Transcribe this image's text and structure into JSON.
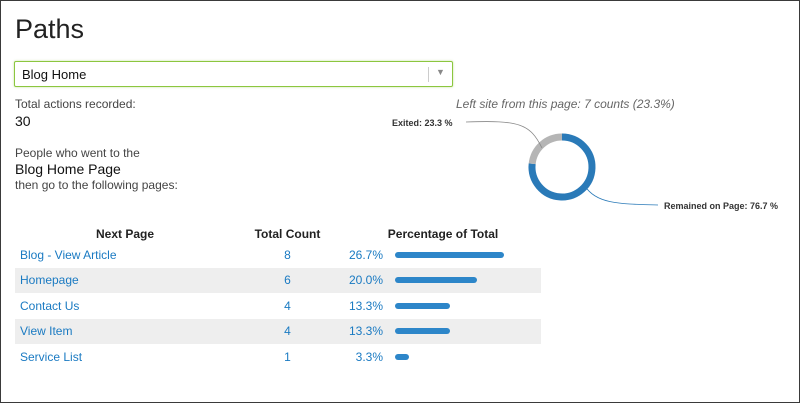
{
  "title": "Paths",
  "select": {
    "value": "Blog Home"
  },
  "summary": {
    "total_label": "Total actions recorded:",
    "total_value": "30",
    "people_label": "People who went to the",
    "page_name": "Blog Home Page",
    "then_label": "then go to the following pages:"
  },
  "exit_summary": "Left site from this page: 7 counts (23.3%)",
  "chart_data": {
    "type": "pie",
    "categories": [
      "Exited",
      "Remained on Page"
    ],
    "values": [
      23.3,
      76.7
    ],
    "labels": [
      "Exited: 23.3 %",
      "Remained on Page: 76.7 %"
    ],
    "colors": [
      "#b5b5b5",
      "#2a7ab8"
    ]
  },
  "table": {
    "headers": [
      "Next Page",
      "Total Count",
      "Percentage of Total"
    ],
    "rows": [
      {
        "page": "Blog - View Article",
        "count": "8",
        "percent": "26.7%",
        "fraction": 0.267
      },
      {
        "page": "Homepage",
        "count": "6",
        "percent": "20.0%",
        "fraction": 0.2
      },
      {
        "page": "Contact Us",
        "count": "4",
        "percent": "13.3%",
        "fraction": 0.133
      },
      {
        "page": "View Item",
        "count": "4",
        "percent": "13.3%",
        "fraction": 0.133
      },
      {
        "page": "Service List",
        "count": "1",
        "percent": "3.3%",
        "fraction": 0.033
      }
    ]
  }
}
